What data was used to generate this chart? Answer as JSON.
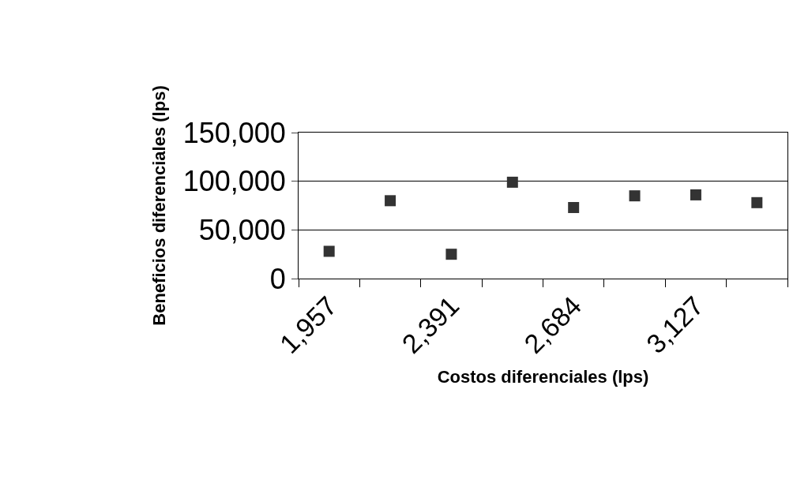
{
  "chart_data": {
    "type": "scatter",
    "xlabel": "Costos diferenciales (lps)",
    "ylabel": "Beneficios diferenciales (lps)",
    "categories": [
      "1,957",
      null,
      "2,391",
      null,
      "2,684",
      null,
      "3,127",
      null
    ],
    "values": [
      28000,
      80000,
      25000,
      99000,
      73000,
      85000,
      86000,
      78000
    ],
    "color": "#333333",
    "marker": "square",
    "grid": "y",
    "legend": false,
    "ylim": [
      0,
      150000
    ],
    "yticks": [
      0,
      {
        "value": 50000,
        "label": "50,000"
      },
      {
        "value": 100000,
        "label": "100,000"
      },
      {
        "value": 150000,
        "label": "150,000"
      }
    ]
  }
}
